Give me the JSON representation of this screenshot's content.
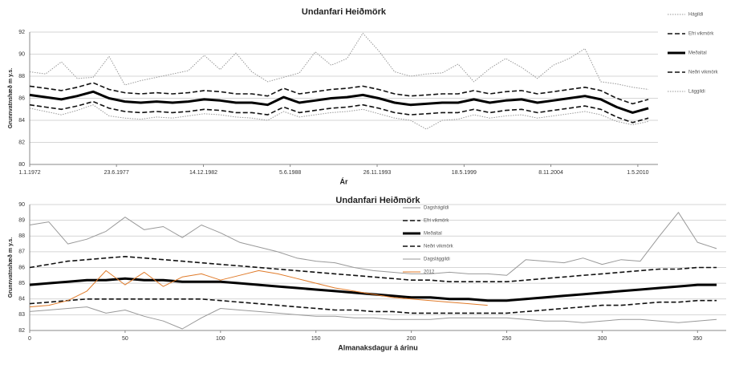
{
  "chart_data": [
    {
      "type": "line",
      "title": "Undanfari Heiðmörk",
      "xlabel": "Ár",
      "ylabel": "Grunnvatnshæð m y.s.",
      "x": [
        1972,
        1973,
        1974,
        1975,
        1976,
        1977,
        1978,
        1979,
        1980,
        1981,
        1982,
        1983,
        1984,
        1985,
        1986,
        1987,
        1988,
        1989,
        1990,
        1991,
        1992,
        1993,
        1994,
        1995,
        1996,
        1997,
        1998,
        1999,
        2000,
        2001,
        2002,
        2003,
        2004,
        2005,
        2006,
        2007,
        2008,
        2009,
        2010,
        2011
      ],
      "xlim": [
        1972,
        2011.6
      ],
      "xticks": [
        {
          "value": 1972,
          "label": "1.1.1972"
        },
        {
          "value": 1977.47,
          "label": "23.6.1977"
        },
        {
          "value": 1982.95,
          "label": "14.12.1982"
        },
        {
          "value": 1988.42,
          "label": "5.6.1988"
        },
        {
          "value": 1993.9,
          "label": "26.11.1993"
        },
        {
          "value": 1999.38,
          "label": "18.5.1999"
        },
        {
          "value": 2004.85,
          "label": "8.11.2004"
        },
        {
          "value": 2010.33,
          "label": "1.5.2010"
        }
      ],
      "ylim": [
        80,
        92
      ],
      "yticks": [
        80,
        82,
        84,
        86,
        88,
        90,
        92
      ],
      "grid": true,
      "series": [
        {
          "name": "Hágildi",
          "color": "#999999",
          "style": "dotted",
          "values": [
            88.4,
            88.2,
            89.3,
            87.8,
            87.9,
            89.8,
            87.2,
            87.6,
            87.9,
            88.2,
            88.5,
            89.9,
            88.6,
            90.1,
            88.4,
            87.5,
            87.9,
            88.3,
            90.2,
            89.0,
            89.6,
            91.9,
            90.3,
            88.4,
            88.0,
            88.2,
            88.3,
            89.1,
            87.5,
            88.7,
            89.6,
            88.8,
            87.8,
            89.0,
            89.6,
            90.5,
            87.5,
            87.3,
            87.0,
            86.8
          ]
        },
        {
          "name": "Efri vikmörk",
          "color": "#111111",
          "style": "dashed",
          "values": [
            87.1,
            86.9,
            86.7,
            87.0,
            87.4,
            86.8,
            86.5,
            86.4,
            86.5,
            86.4,
            86.5,
            86.7,
            86.6,
            86.4,
            86.4,
            86.2,
            86.9,
            86.4,
            86.6,
            86.8,
            86.9,
            87.1,
            86.8,
            86.4,
            86.2,
            86.3,
            86.4,
            86.4,
            86.7,
            86.4,
            86.6,
            86.7,
            86.4,
            86.6,
            86.8,
            87.0,
            86.7,
            86.0,
            85.5,
            85.9
          ]
        },
        {
          "name": "Meðaltal",
          "color": "#000000",
          "style": "thick",
          "values": [
            86.3,
            86.1,
            85.9,
            86.2,
            86.6,
            86.0,
            85.7,
            85.6,
            85.7,
            85.6,
            85.7,
            85.9,
            85.8,
            85.6,
            85.6,
            85.4,
            86.1,
            85.6,
            85.8,
            86.0,
            86.1,
            86.3,
            86.0,
            85.6,
            85.4,
            85.5,
            85.6,
            85.6,
            85.9,
            85.6,
            85.8,
            85.9,
            85.6,
            85.8,
            86.0,
            86.2,
            85.9,
            85.2,
            84.7,
            85.1
          ]
        },
        {
          "name": "Neðri vikmörk",
          "color": "#111111",
          "style": "dashed",
          "values": [
            85.4,
            85.2,
            85.0,
            85.3,
            85.7,
            85.1,
            84.8,
            84.7,
            84.8,
            84.7,
            84.8,
            85.0,
            84.9,
            84.7,
            84.7,
            84.5,
            85.2,
            84.7,
            84.9,
            85.1,
            85.2,
            85.4,
            85.1,
            84.7,
            84.5,
            84.6,
            84.7,
            84.7,
            85.0,
            84.7,
            84.9,
            85.0,
            84.7,
            84.9,
            85.1,
            85.3,
            85.0,
            84.3,
            83.8,
            84.2
          ]
        },
        {
          "name": "Lággildi",
          "color": "#999999",
          "style": "dotted",
          "values": [
            85.1,
            84.8,
            84.5,
            84.9,
            85.4,
            84.4,
            84.2,
            84.1,
            84.3,
            84.2,
            84.4,
            84.6,
            84.5,
            84.3,
            84.2,
            84.0,
            84.8,
            84.3,
            84.5,
            84.7,
            84.8,
            85.0,
            84.6,
            84.2,
            84.0,
            83.2,
            84.0,
            84.1,
            84.5,
            84.2,
            84.4,
            84.5,
            84.2,
            84.4,
            84.6,
            84.8,
            84.5,
            83.9,
            83.6,
            83.9
          ]
        }
      ]
    },
    {
      "type": "line",
      "title": "Undanfari Heiðmörk",
      "xlabel": "Almanaksdagur á árinu",
      "ylabel": "Grunnvatnshæð m y.s.",
      "x": [
        0,
        10,
        20,
        30,
        40,
        50,
        60,
        70,
        80,
        90,
        100,
        110,
        120,
        130,
        140,
        150,
        160,
        170,
        180,
        190,
        200,
        210,
        220,
        230,
        240,
        250,
        260,
        270,
        280,
        290,
        300,
        310,
        320,
        330,
        340,
        350,
        360
      ],
      "xlim": [
        0,
        365
      ],
      "xticks": [
        0,
        50,
        100,
        150,
        200,
        250,
        300,
        350
      ],
      "ylim": [
        82,
        90
      ],
      "yticks": [
        82,
        83,
        84,
        85,
        86,
        87,
        88,
        89,
        90
      ],
      "grid": true,
      "series": [
        {
          "name": "Dagshágildi",
          "color": "#999999",
          "style": "solid",
          "values": [
            88.7,
            88.9,
            87.5,
            87.8,
            88.3,
            89.2,
            88.4,
            88.6,
            87.9,
            88.7,
            88.2,
            87.6,
            87.3,
            87.0,
            86.6,
            86.4,
            86.3,
            86.0,
            85.8,
            85.7,
            85.6,
            85.6,
            85.7,
            85.6,
            85.6,
            85.5,
            86.5,
            86.4,
            86.3,
            86.6,
            86.2,
            86.5,
            86.4,
            88.0,
            89.5,
            87.6,
            87.2
          ]
        },
        {
          "name": "Efri vikmörk",
          "color": "#111111",
          "style": "dashed",
          "values": [
            86.0,
            86.2,
            86.4,
            86.5,
            86.6,
            86.7,
            86.6,
            86.5,
            86.4,
            86.3,
            86.2,
            86.1,
            86.0,
            85.9,
            85.8,
            85.7,
            85.6,
            85.5,
            85.4,
            85.3,
            85.2,
            85.2,
            85.1,
            85.1,
            85.1,
            85.1,
            85.2,
            85.3,
            85.4,
            85.5,
            85.6,
            85.7,
            85.8,
            85.9,
            85.9,
            86.0,
            86.0
          ]
        },
        {
          "name": "Meðaltal",
          "color": "#000000",
          "style": "thick",
          "values": [
            84.9,
            85.0,
            85.1,
            85.2,
            85.2,
            85.3,
            85.2,
            85.2,
            85.1,
            85.1,
            85.1,
            85.0,
            84.9,
            84.8,
            84.7,
            84.6,
            84.5,
            84.4,
            84.3,
            84.2,
            84.1,
            84.1,
            84.0,
            84.0,
            83.9,
            83.9,
            84.0,
            84.1,
            84.2,
            84.3,
            84.4,
            84.5,
            84.6,
            84.7,
            84.8,
            84.9,
            84.9
          ]
        },
        {
          "name": "Neðri vikmörk",
          "color": "#111111",
          "style": "dashed",
          "values": [
            83.7,
            83.8,
            83.9,
            84.0,
            84.0,
            84.0,
            84.0,
            84.0,
            84.0,
            84.0,
            83.9,
            83.8,
            83.7,
            83.6,
            83.5,
            83.4,
            83.3,
            83.3,
            83.2,
            83.2,
            83.1,
            83.1,
            83.1,
            83.1,
            83.1,
            83.1,
            83.2,
            83.3,
            83.4,
            83.5,
            83.6,
            83.6,
            83.7,
            83.8,
            83.8,
            83.9,
            83.9
          ]
        },
        {
          "name": "Dagslággildi",
          "color": "#999999",
          "style": "solid",
          "values": [
            83.2,
            83.3,
            83.4,
            83.5,
            83.1,
            83.3,
            82.9,
            82.6,
            82.1,
            82.8,
            83.4,
            83.3,
            83.2,
            83.1,
            83.0,
            82.9,
            82.9,
            82.8,
            82.8,
            82.7,
            82.7,
            82.7,
            82.8,
            82.8,
            82.8,
            82.8,
            82.7,
            82.6,
            82.6,
            82.5,
            82.6,
            82.7,
            82.7,
            82.6,
            82.5,
            82.6,
            82.7
          ]
        },
        {
          "name": "2012",
          "color": "#e07b2a",
          "style": "solid",
          "values": [
            83.5,
            83.6,
            83.9,
            84.5,
            85.8,
            84.9,
            85.7,
            84.8,
            85.4,
            85.6,
            85.2,
            85.5,
            85.8,
            85.6,
            85.3,
            85.0,
            84.7,
            84.5,
            84.3,
            84.1,
            84.0,
            83.9,
            83.8,
            83.7,
            83.6,
            null,
            null,
            null,
            null,
            null,
            null,
            null,
            null,
            null,
            null,
            null,
            null
          ]
        }
      ]
    }
  ]
}
